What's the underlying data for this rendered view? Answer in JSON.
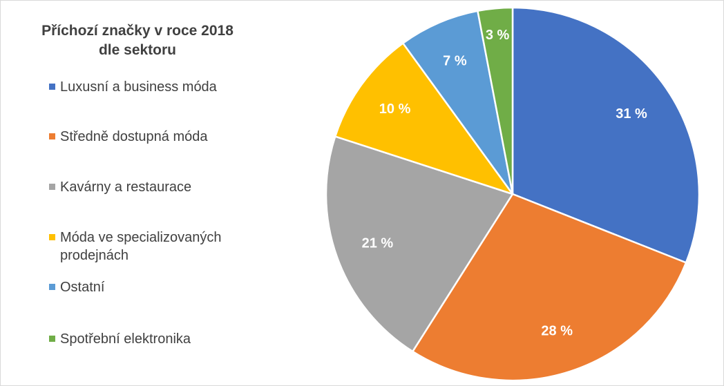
{
  "chart_data": {
    "type": "pie",
    "title_lines": [
      "Příchozí značky v roce 2018",
      "dle sektoru"
    ],
    "categories": [
      "Luxusní a business móda",
      "Středně dostupná móda",
      "Kavárny a restaurace",
      "Móda ve specializovaných prodejnách",
      "Ostatní",
      "Spotřební elektronika"
    ],
    "values": [
      31,
      28,
      21,
      10,
      7,
      3
    ],
    "value_labels": [
      "31 %",
      "28 %",
      "21 %",
      "10 %",
      "7 %",
      "3 %"
    ],
    "colors": [
      "#4472C4",
      "#ED7D31",
      "#A5A5A5",
      "#FFC000",
      "#5B9BD5",
      "#70AD47"
    ],
    "legend_position": "left"
  }
}
